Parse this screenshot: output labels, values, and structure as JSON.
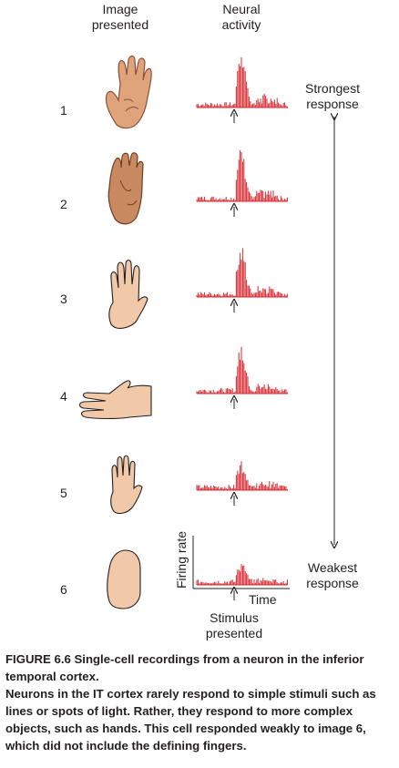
{
  "headers": {
    "image_line1": "Image",
    "image_line2": "presented",
    "neural_line1": "Neural",
    "neural_line2": "activity"
  },
  "rows": [
    {
      "number": "1",
      "hand": "open palm, fingers spread",
      "response_level": 1.0
    },
    {
      "number": "2",
      "hand": "back of hand, fingers together",
      "response_level": 0.85
    },
    {
      "number": "3",
      "hand": "outline hand, fingers together",
      "response_level": 0.8
    },
    {
      "number": "4",
      "hand": "hand pointing sideways",
      "response_level": 0.78
    },
    {
      "number": "5",
      "hand": "outline hand, small",
      "response_level": 0.45
    },
    {
      "number": "6",
      "hand": "mitten shape without fingers",
      "response_level": 0.32
    }
  ],
  "scale": {
    "top_line1": "Strongest",
    "top_line2": "response",
    "bottom_line1": "Weakest",
    "bottom_line2": "response"
  },
  "axes": {
    "y_label": "Firing rate",
    "x_label": "Time",
    "stimulus_line1": "Stimulus",
    "stimulus_line2": "presented"
  },
  "caption": {
    "title": "FIGURE 6.6 Single-cell recordings from a neuron in the inferior temporal cortex.",
    "body": "Neurons in the IT cortex rarely respond to simple stimuli such as lines or spots of light. Rather, they respond to more complex objects, such as hands. This cell responded weakly to image 6, which did not include the defining fingers."
  },
  "colors": {
    "spikes": "#d7282f",
    "skin_dark": "#c98a62",
    "skin_light": "#f1c9a8",
    "line": "#231f20"
  }
}
